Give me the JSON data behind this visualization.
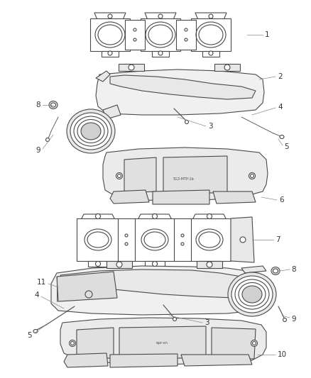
{
  "background_color": "#ffffff",
  "line_color": "#4a4a4a",
  "callout_color": "#888888",
  "text_color": "#333333",
  "fig_width": 4.38,
  "fig_height": 5.33,
  "dpi": 100
}
